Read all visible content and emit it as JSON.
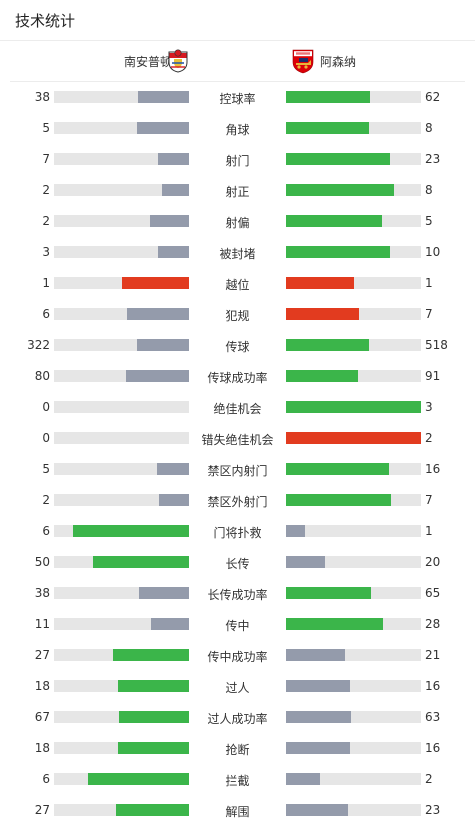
{
  "header": {
    "title": "技术统计"
  },
  "teams": {
    "home": "南安普顿",
    "away": "阿森纳"
  },
  "colors": {
    "green": "#3bb54a",
    "gray": "#949bab",
    "red": "#e23b1f",
    "track": "#e6e6e6"
  },
  "stats": [
    {
      "label": "控球率",
      "home": "38",
      "away": "62",
      "home_fill": 0.38,
      "away_fill": 0.62,
      "home_color": "gray",
      "away_color": "green"
    },
    {
      "label": "角球",
      "home": "5",
      "away": "8",
      "home_fill": 0.385,
      "away_fill": 0.615,
      "home_color": "gray",
      "away_color": "green"
    },
    {
      "label": "射门",
      "home": "7",
      "away": "23",
      "home_fill": 0.233,
      "away_fill": 0.767,
      "home_color": "gray",
      "away_color": "green"
    },
    {
      "label": "射正",
      "home": "2",
      "away": "8",
      "home_fill": 0.2,
      "away_fill": 0.8,
      "home_color": "gray",
      "away_color": "green"
    },
    {
      "label": "射偏",
      "home": "2",
      "away": "5",
      "home_fill": 0.286,
      "away_fill": 0.714,
      "home_color": "gray",
      "away_color": "green"
    },
    {
      "label": "被封堵",
      "home": "3",
      "away": "10",
      "home_fill": 0.231,
      "away_fill": 0.769,
      "home_color": "gray",
      "away_color": "green"
    },
    {
      "label": "越位",
      "home": "1",
      "away": "1",
      "home_fill": 0.5,
      "away_fill": 0.5,
      "home_color": "red",
      "away_color": "red"
    },
    {
      "label": "犯规",
      "home": "6",
      "away": "7",
      "home_fill": 0.462,
      "away_fill": 0.538,
      "home_color": "gray",
      "away_color": "red"
    },
    {
      "label": "传球",
      "home": "322",
      "away": "518",
      "home_fill": 0.383,
      "away_fill": 0.617,
      "home_color": "gray",
      "away_color": "green"
    },
    {
      "label": "传球成功率",
      "home": "80",
      "away": "91",
      "home_fill": 0.468,
      "away_fill": 0.532,
      "home_color": "gray",
      "away_color": "green"
    },
    {
      "label": "绝佳机会",
      "home": "0",
      "away": "3",
      "home_fill": 0,
      "away_fill": 1,
      "home_color": "gray",
      "away_color": "green"
    },
    {
      "label": "错失绝佳机会",
      "home": "0",
      "away": "2",
      "home_fill": 0,
      "away_fill": 1,
      "home_color": "gray",
      "away_color": "red"
    },
    {
      "label": "禁区内射门",
      "home": "5",
      "away": "16",
      "home_fill": 0.238,
      "away_fill": 0.762,
      "home_color": "gray",
      "away_color": "green"
    },
    {
      "label": "禁区外射门",
      "home": "2",
      "away": "7",
      "home_fill": 0.222,
      "away_fill": 0.778,
      "home_color": "gray",
      "away_color": "green"
    },
    {
      "label": "门将扑救",
      "home": "6",
      "away": "1",
      "home_fill": 0.857,
      "away_fill": 0.143,
      "home_color": "green",
      "away_color": "gray"
    },
    {
      "label": "长传",
      "home": "50",
      "away": "20",
      "home_fill": 0.714,
      "away_fill": 0.286,
      "home_color": "green",
      "away_color": "gray"
    },
    {
      "label": "长传成功率",
      "home": "38",
      "away": "65",
      "home_fill": 0.369,
      "away_fill": 0.631,
      "home_color": "gray",
      "away_color": "green"
    },
    {
      "label": "传中",
      "home": "11",
      "away": "28",
      "home_fill": 0.282,
      "away_fill": 0.718,
      "home_color": "gray",
      "away_color": "green"
    },
    {
      "label": "传中成功率",
      "home": "27",
      "away": "21",
      "home_fill": 0.5625,
      "away_fill": 0.4375,
      "home_color": "green",
      "away_color": "gray"
    },
    {
      "label": "过人",
      "home": "18",
      "away": "16",
      "home_fill": 0.529,
      "away_fill": 0.471,
      "home_color": "green",
      "away_color": "gray"
    },
    {
      "label": "过人成功率",
      "home": "67",
      "away": "63",
      "home_fill": 0.515,
      "away_fill": 0.485,
      "home_color": "green",
      "away_color": "gray"
    },
    {
      "label": "抢断",
      "home": "18",
      "away": "16",
      "home_fill": 0.529,
      "away_fill": 0.471,
      "home_color": "green",
      "away_color": "gray"
    },
    {
      "label": "拦截",
      "home": "6",
      "away": "2",
      "home_fill": 0.75,
      "away_fill": 0.25,
      "home_color": "green",
      "away_color": "gray"
    },
    {
      "label": "解围",
      "home": "27",
      "away": "23",
      "home_fill": 0.54,
      "away_fill": 0.46,
      "home_color": "green",
      "away_color": "gray"
    }
  ]
}
